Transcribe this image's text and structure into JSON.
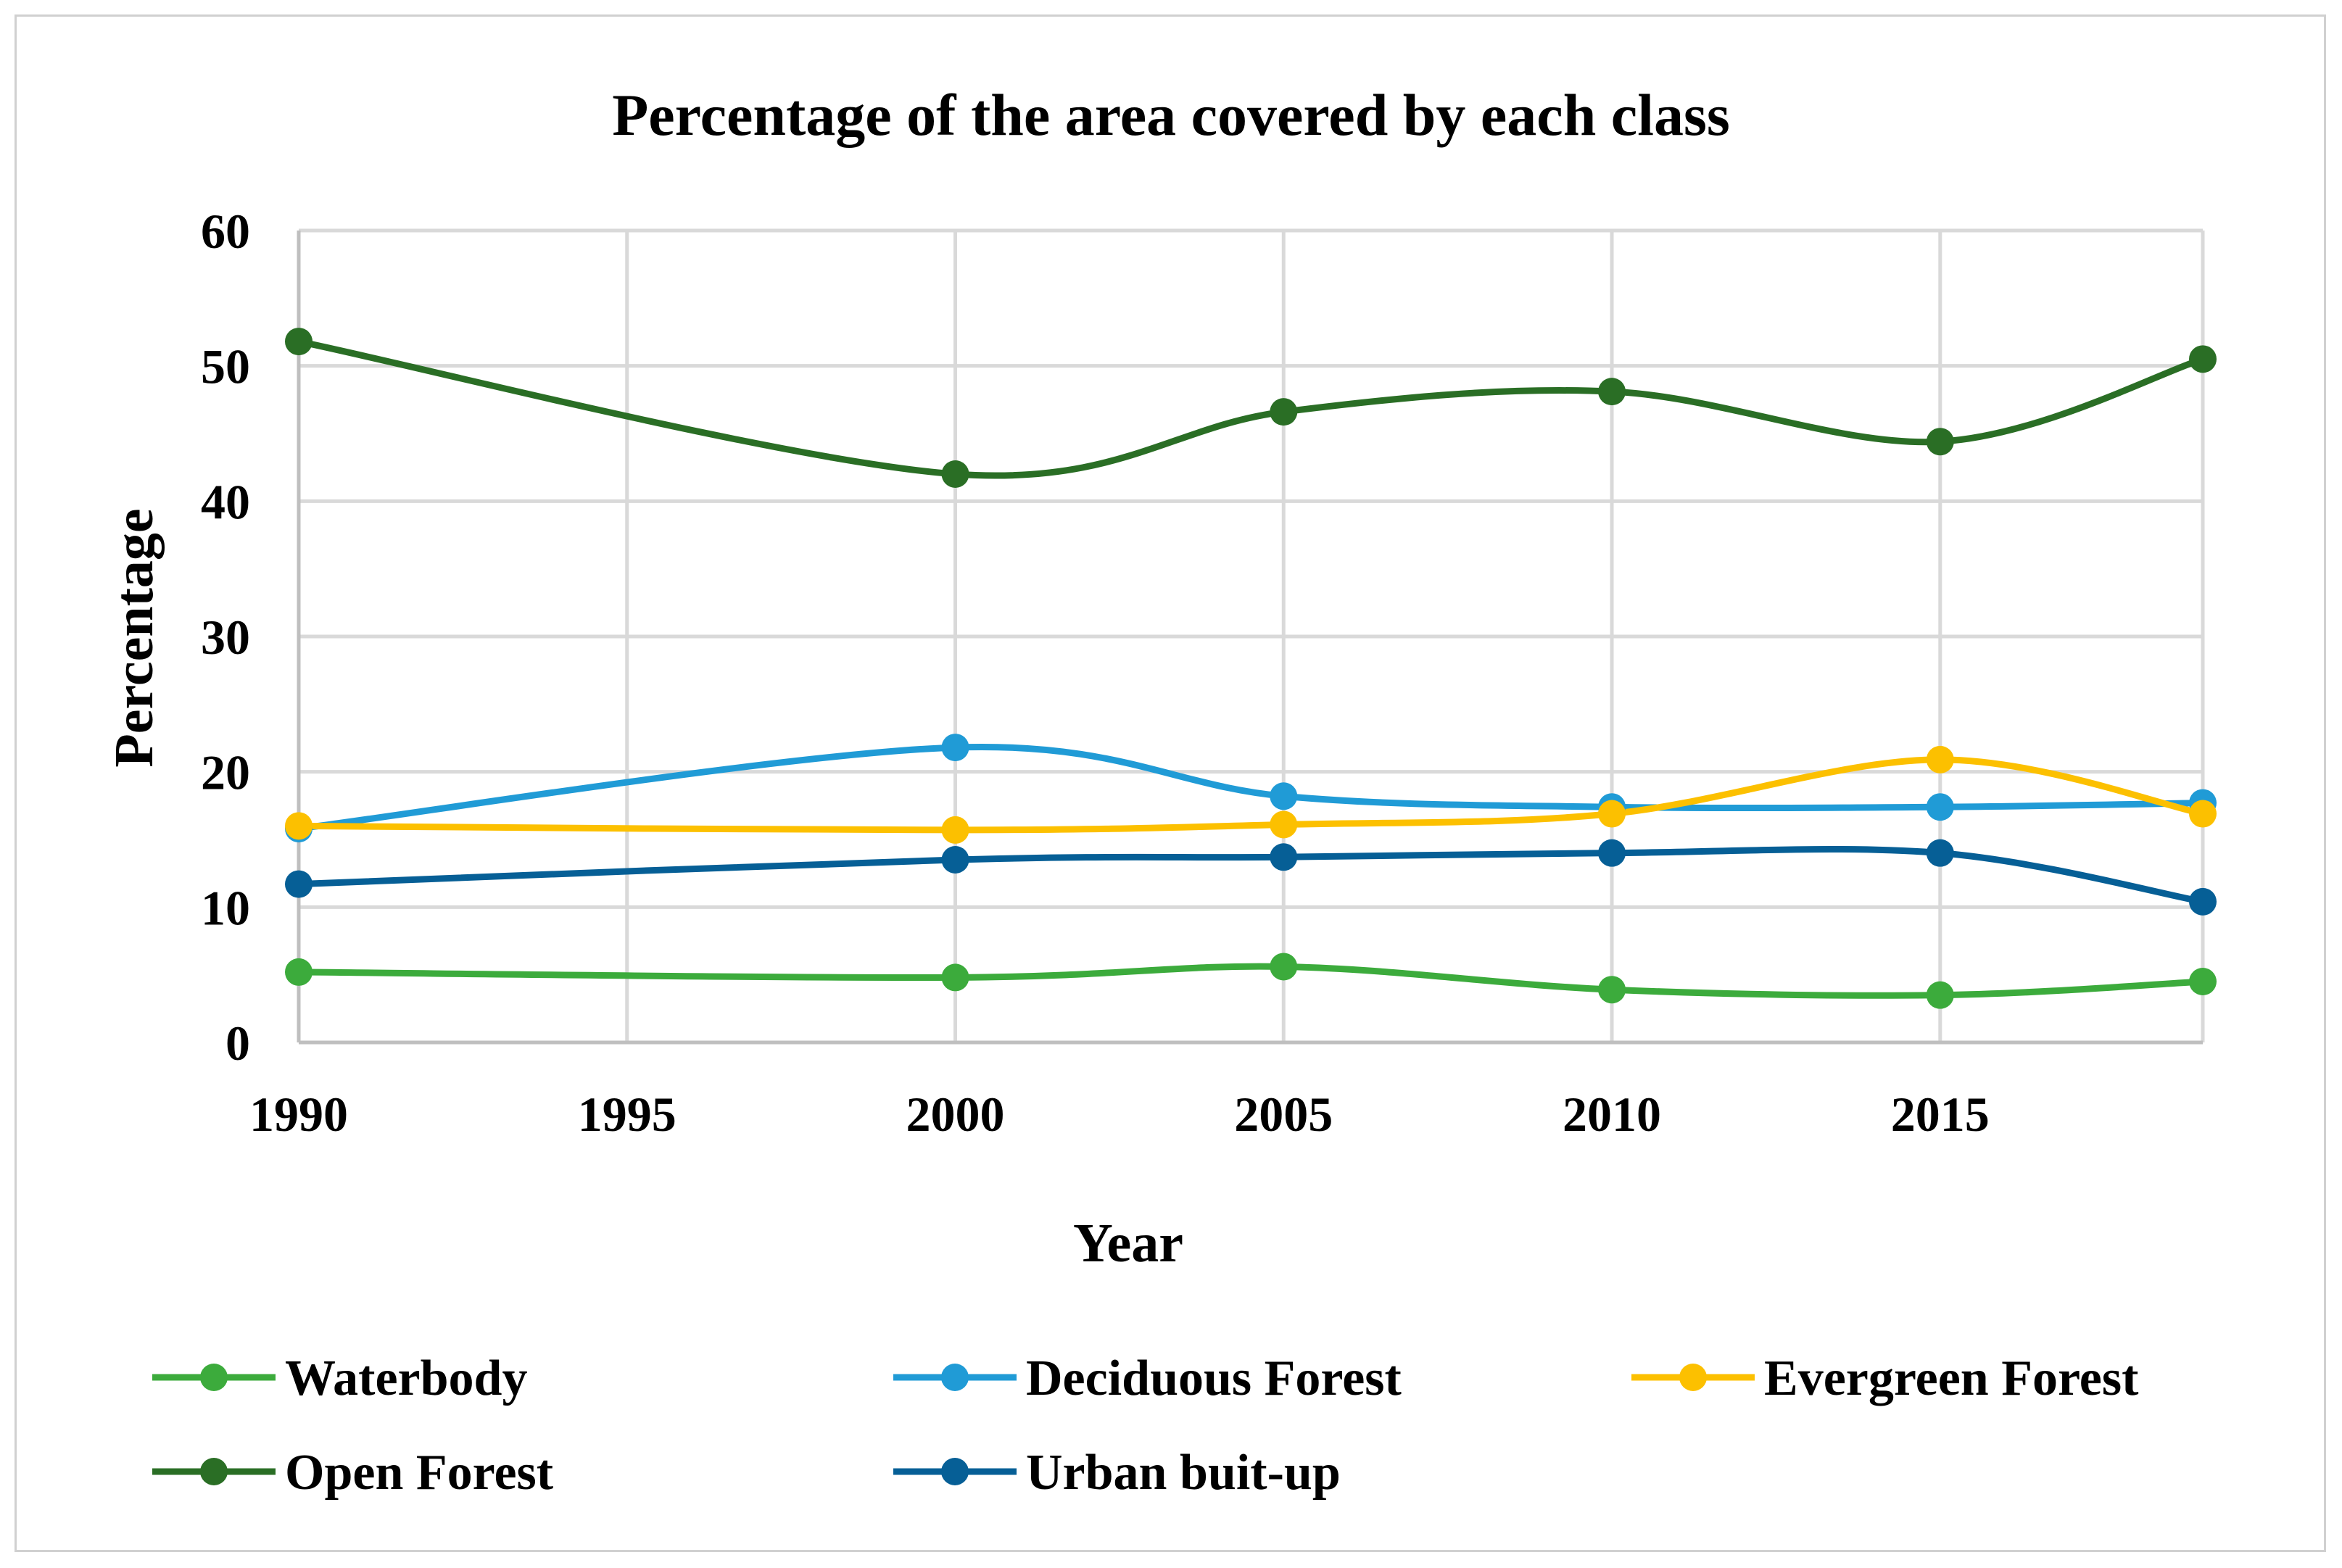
{
  "chart_data": {
    "type": "line",
    "title": "Percentage of the area covered  by each class",
    "xlabel": "Year",
    "ylabel": "Percentage",
    "xlim": [
      1990,
      2019
    ],
    "ylim": [
      0,
      60
    ],
    "x_ticks": [
      1990,
      1995,
      2000,
      2005,
      2010,
      2015
    ],
    "y_ticks": [
      0,
      10,
      20,
      30,
      40,
      50,
      60
    ],
    "grid": true,
    "smooth": true,
    "legend_position": "bottom",
    "x": [
      1990,
      2000,
      2005,
      2010,
      2015,
      2019
    ],
    "series": [
      {
        "name": "Waterbody",
        "color": "#3cab3c",
        "values": [
          5.2,
          4.8,
          5.6,
          3.9,
          3.5,
          4.5
        ]
      },
      {
        "name": "Deciduous Forest",
        "color": "#209bd6",
        "values": [
          15.8,
          21.8,
          18.2,
          17.4,
          17.4,
          17.7
        ]
      },
      {
        "name": "Evergreen Forest",
        "color": "#fcc000",
        "values": [
          16.0,
          15.7,
          16.1,
          16.9,
          20.9,
          16.9
        ]
      },
      {
        "name": "Open Forest",
        "color": "#2a6e25",
        "values": [
          51.8,
          42.0,
          46.6,
          48.1,
          44.4,
          50.5
        ]
      },
      {
        "name": "Urban buit-up",
        "color": "#065f96",
        "values": [
          11.7,
          13.5,
          13.7,
          14.0,
          14.0,
          10.4
        ]
      }
    ]
  }
}
